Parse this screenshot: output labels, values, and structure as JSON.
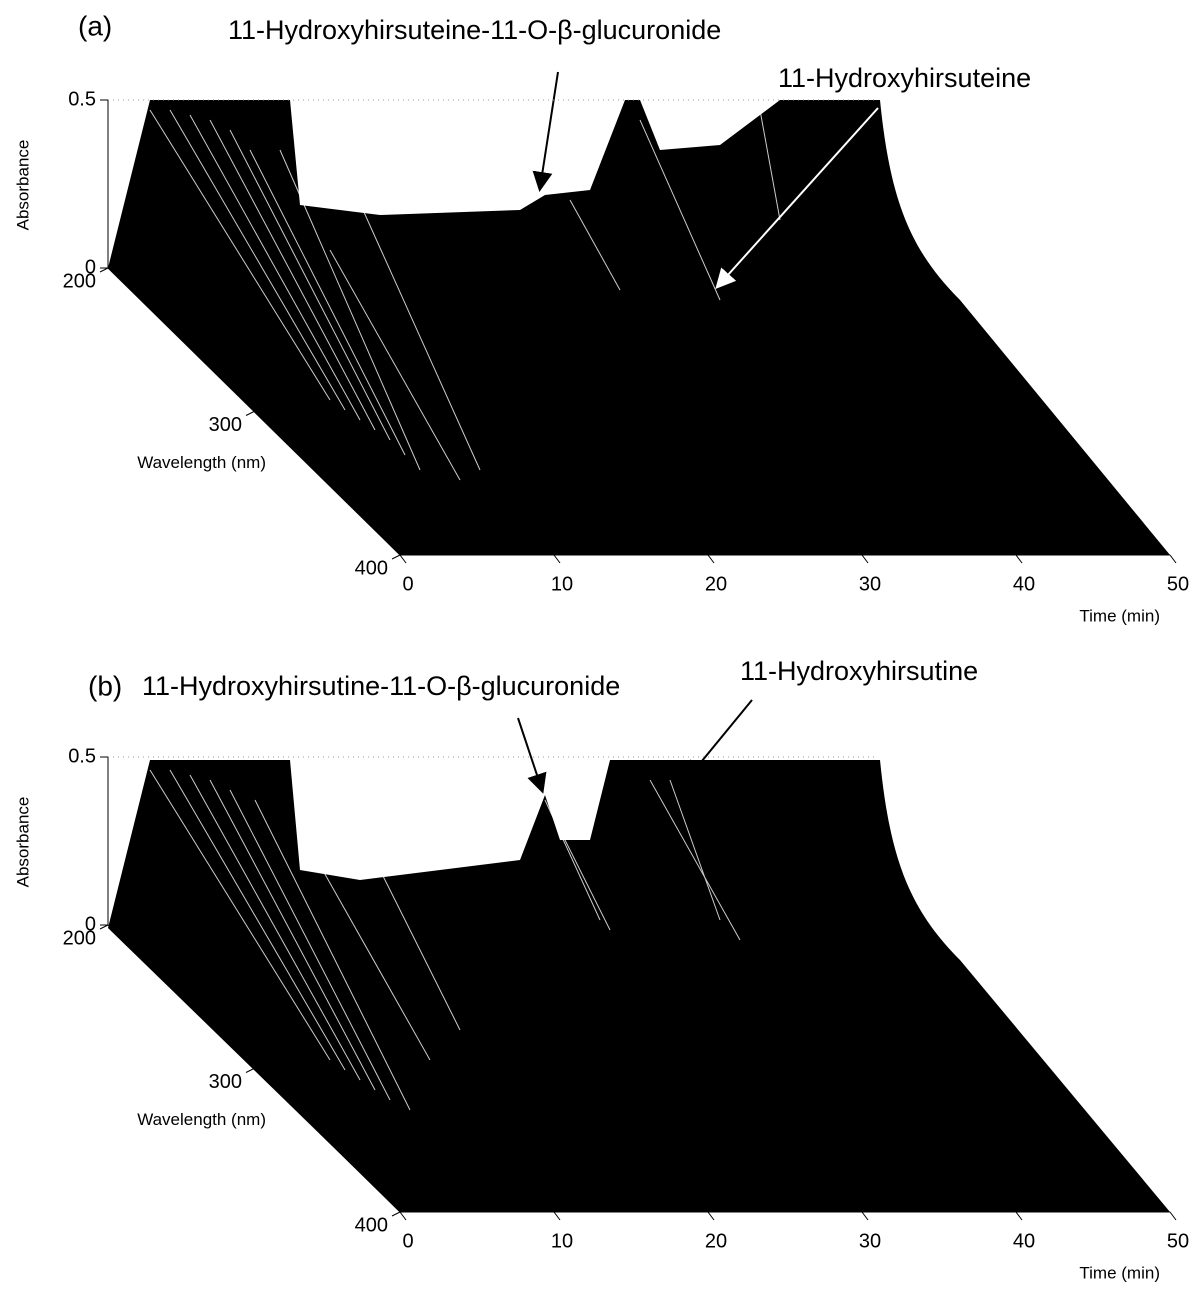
{
  "chart_data": [
    {
      "type": "surface3d",
      "panel_label": "(a)",
      "y_label": "Absorbance",
      "z_label": "Wavelength (nm)",
      "x_label": "Time (min)",
      "ylim": [
        0,
        0.5
      ],
      "yticks": [
        0,
        0.5
      ],
      "zlim": [
        200,
        400
      ],
      "zticks": [
        200,
        300,
        400
      ],
      "xlim": [
        0,
        50
      ],
      "xticks": [
        0,
        10,
        20,
        30,
        40,
        50
      ],
      "annotations": [
        "11-Hydroxyhirsuteine-11-O-β-glucuronide",
        "11-Hydroxyhirsuteine"
      ]
    },
    {
      "type": "surface3d",
      "panel_label": "(b)",
      "y_label": "Absorbance",
      "z_label": "Wavelength (nm)",
      "x_label": "Time (min)",
      "ylim": [
        0,
        0.5
      ],
      "yticks": [
        0,
        0.5
      ],
      "zlim": [
        200,
        400
      ],
      "zticks": [
        200,
        300,
        400
      ],
      "xlim": [
        0,
        50
      ],
      "xticks": [
        0,
        10,
        20,
        30,
        40,
        50
      ],
      "annotations": [
        "11-Hydroxyhirsutine-11-O-β-glucuronide",
        "11-Hydroxyhirsutine"
      ]
    }
  ]
}
